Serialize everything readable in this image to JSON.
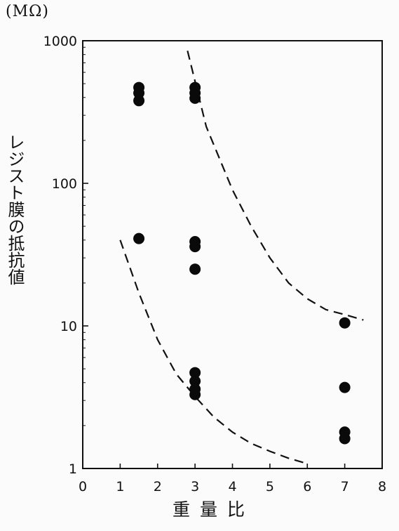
{
  "chart_data": {
    "type": "scatter",
    "ylabel_unit": "(MΩ)",
    "ylabel": "レジスト膜の抵抗値",
    "xlabel": "重量比",
    "x_ticks": [
      "0",
      "1",
      "2",
      "3",
      "4",
      "5",
      "6",
      "7",
      "8"
    ],
    "y_ticks": [
      "1",
      "10",
      "100",
      "1000"
    ],
    "xlim": [
      0,
      8
    ],
    "ylim": [
      1,
      1000
    ],
    "y_scale": "log",
    "grid": false,
    "series": [
      {
        "marker": "filled-circle",
        "points": [
          {
            "x": 1.5,
            "y": 470
          },
          {
            "x": 1.5,
            "y": 430
          },
          {
            "x": 1.5,
            "y": 380
          },
          {
            "x": 1.5,
            "y": 41
          },
          {
            "x": 3,
            "y": 470
          },
          {
            "x": 3,
            "y": 430
          },
          {
            "x": 3,
            "y": 395
          },
          {
            "x": 3,
            "y": 39
          },
          {
            "x": 3,
            "y": 36
          },
          {
            "x": 3,
            "y": 25
          },
          {
            "x": 3,
            "y": 4.7
          },
          {
            "x": 3,
            "y": 4.1
          },
          {
            "x": 3,
            "y": 3.6
          },
          {
            "x": 3,
            "y": 3.3
          },
          {
            "x": 7,
            "y": 10.5
          },
          {
            "x": 7,
            "y": 3.7
          },
          {
            "x": 7,
            "y": 1.8
          },
          {
            "x": 7,
            "y": 1.62
          }
        ]
      }
    ],
    "curves": [
      {
        "style": "dashed",
        "points": [
          [
            2.8,
            850
          ],
          [
            3.3,
            250
          ],
          [
            4.0,
            90
          ],
          [
            4.5,
            50
          ],
          [
            5.0,
            30
          ],
          [
            5.5,
            20
          ],
          [
            6.0,
            15.5
          ],
          [
            6.5,
            13
          ],
          [
            7.0,
            12
          ],
          [
            7.5,
            11
          ]
        ]
      },
      {
        "style": "dashed",
        "points": [
          [
            1.0,
            40
          ],
          [
            1.5,
            17
          ],
          [
            2.0,
            8
          ],
          [
            2.5,
            4.6
          ],
          [
            3.0,
            3.2
          ],
          [
            3.5,
            2.3
          ],
          [
            4.0,
            1.8
          ],
          [
            4.5,
            1.5
          ],
          [
            5.0,
            1.32
          ],
          [
            5.5,
            1.18
          ],
          [
            5.9,
            1.1
          ]
        ]
      }
    ]
  }
}
